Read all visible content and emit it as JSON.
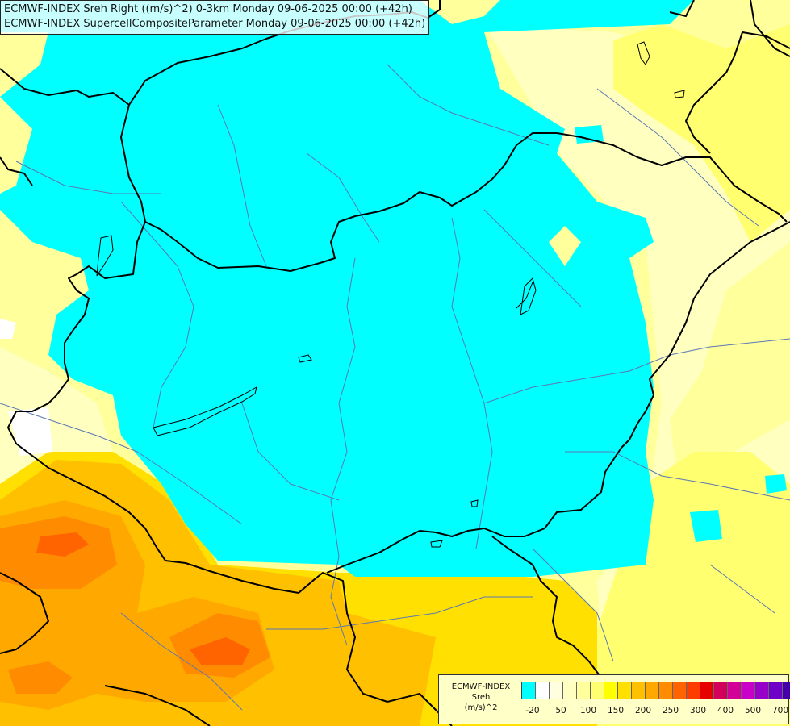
{
  "title": {
    "line1": "ECMWF-INDEX Sreh Right ((m/s)^2) 0-3km Monday 09-06-2025 00:00 (+42h)",
    "line2": "ECMWF-INDEX SupercellCompositeParameter Monday 09-06-2025 00:00 (+42h)"
  },
  "legend": {
    "source": "ECMWF-INDEX",
    "variable": "Sreh",
    "unit": "(m/s)^2",
    "colors": [
      "#00ffff",
      "#ffffff",
      "#ffffe0",
      "#ffffc0",
      "#ffff9c",
      "#ffff70",
      "#ffff00",
      "#ffe000",
      "#ffc000",
      "#ffa800",
      "#ff8c00",
      "#ff6400",
      "#ff3c00",
      "#e60000",
      "#d2005a",
      "#d20096",
      "#c800c8",
      "#9600c8",
      "#6e00c8",
      "#4600aa",
      "#000078"
    ],
    "ticks": [
      "-20",
      "50",
      "100",
      "150",
      "200",
      "250",
      "300",
      "400",
      "500",
      "700"
    ]
  },
  "colors": {
    "cape_low": "#00ffff",
    "background_yellow": "#ffff9c",
    "orange": "#ffc000",
    "dark_orange": "#ff8c00",
    "red_orange": "#ff6400",
    "borders": "#000000",
    "rivers": "#5a78b4"
  }
}
